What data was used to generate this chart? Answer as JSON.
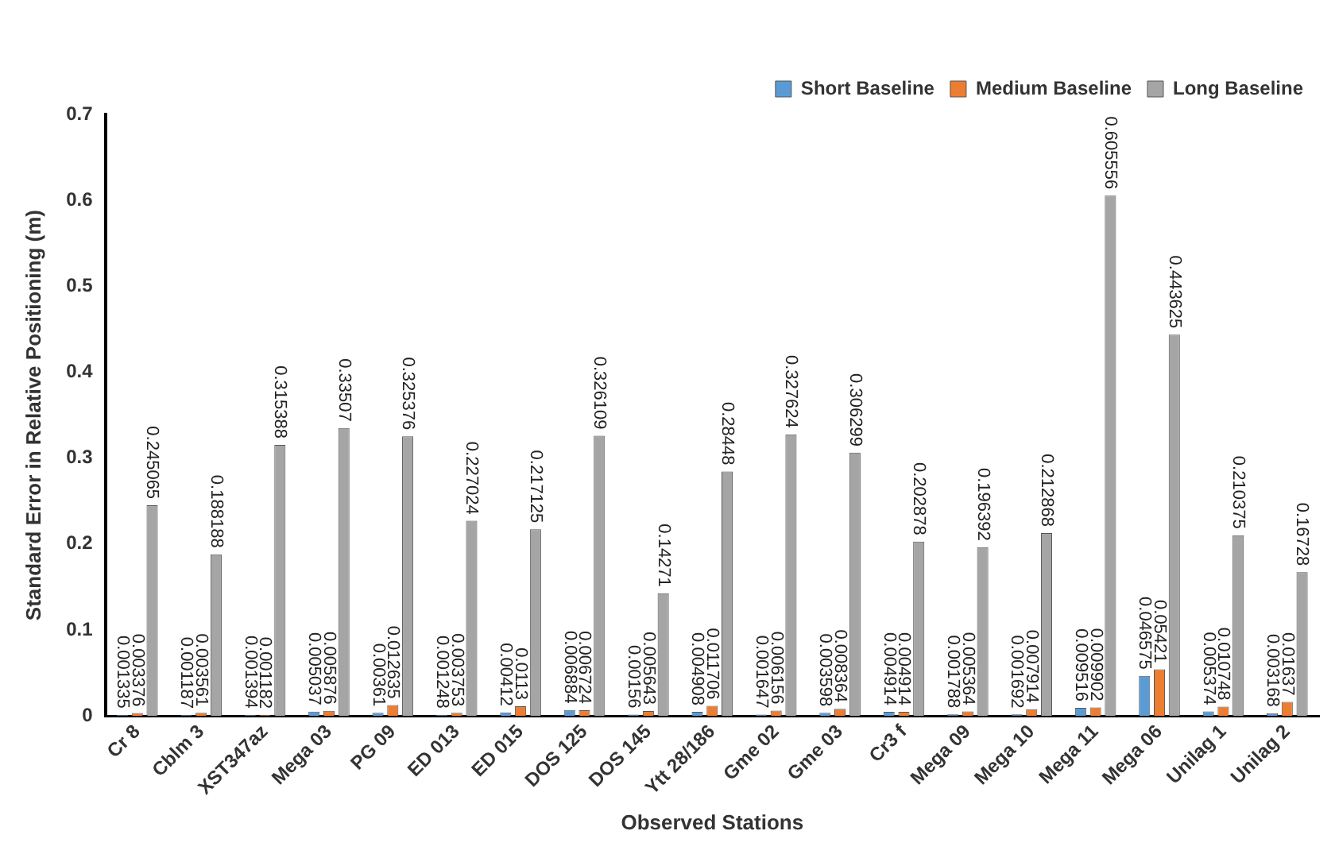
{
  "chart_data": {
    "type": "bar",
    "xlabel": "Observed Stations",
    "ylabel": "Standard Error in Relative Positioning (m)",
    "categories": [
      "Cr 8",
      "Cblm 3",
      "XST347az",
      "Mega 03",
      "PG 09",
      "ED 013",
      "ED 015",
      "DOS 125",
      "DOS 145",
      "Ytt 28/186",
      "Gme 02",
      "Gme 03",
      "Cr3 f",
      "Mega 09",
      "Mega 10",
      "Mega 11",
      "Mega 06",
      "Unilag 1",
      "Unilag 2"
    ],
    "series": [
      {
        "name": "Short Baseline",
        "color": "#5b9bd5",
        "values": [
          0.001335,
          0.001187,
          0.001394,
          0.005037,
          0.00361,
          0.001248,
          0.00412,
          0.006884,
          0.00156,
          0.004908,
          0.001647,
          0.003598,
          0.004914,
          0.001788,
          0.001692,
          0.009516,
          0.046575,
          0.005374,
          0.003168
        ]
      },
      {
        "name": "Medium Baseline",
        "color": "#ed7d31",
        "values": [
          0.003376,
          0.003561,
          0.001182,
          0.005876,
          0.012635,
          0.003753,
          0.0113,
          0.006724,
          0.005643,
          0.011706,
          0.006156,
          0.008364,
          0.004914,
          0.005364,
          0.007914,
          0.009902,
          0.05421,
          0.010748,
          0.01637
        ]
      },
      {
        "name": "Long Baseline",
        "color": "#a5a5a5",
        "values": [
          0.245065,
          0.188188,
          0.315388,
          0.33507,
          0.325376,
          0.227024,
          0.217125,
          0.326109,
          0.14271,
          0.28448,
          0.327624,
          0.306299,
          0.202878,
          0.196392,
          0.212868,
          0.605556,
          0.443625,
          0.210375,
          0.16728
        ]
      }
    ],
    "ylim": [
      0,
      0.7
    ],
    "yticks": [
      0,
      0.1,
      0.2,
      0.3,
      0.4,
      0.5,
      0.6,
      0.7
    ],
    "grid": false,
    "legend": "top right",
    "data_labels": true
  }
}
